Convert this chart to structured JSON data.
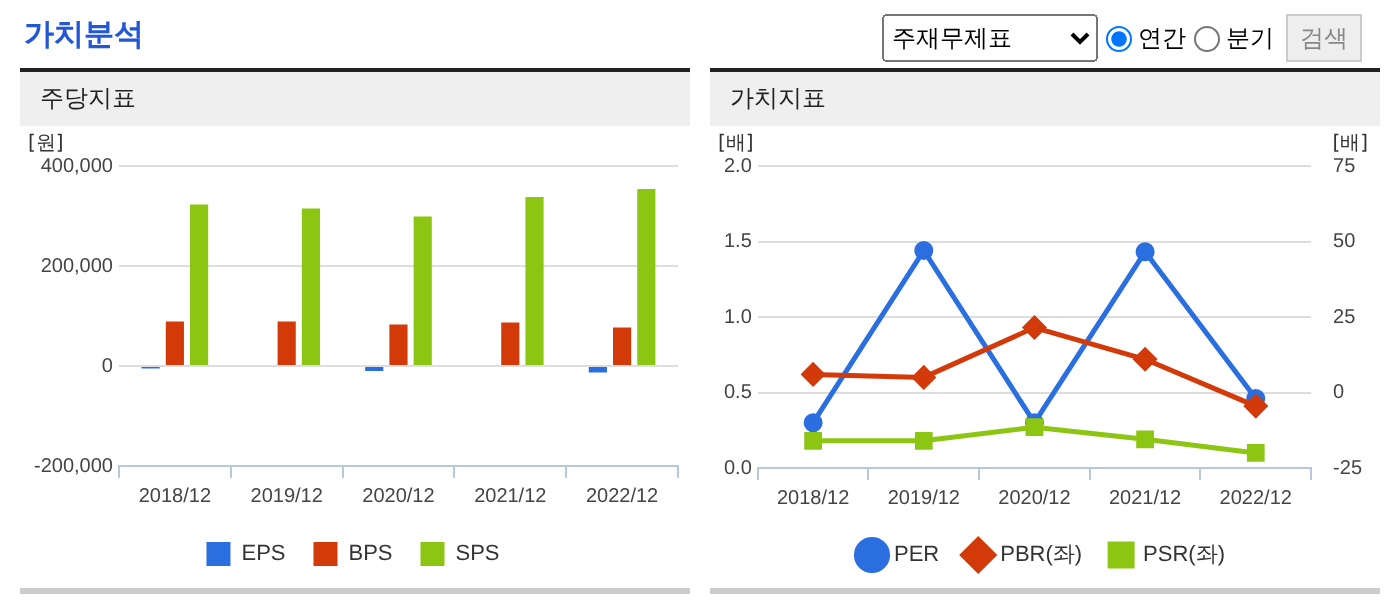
{
  "chart_data": [
    {
      "type": "other",
      "title": "가치분석",
      "annotations": [
        "주재무제표",
        "연간",
        "분기",
        "검색"
      ]
    },
    {
      "type": "bar",
      "title": "주당지표",
      "ylabel": "[원]",
      "categories": [
        "2018/12",
        "2019/12",
        "2020/12",
        "2021/12",
        "2022/12"
      ],
      "series": [
        {
          "name": "EPS",
          "color": "#2a6ee0",
          "values": [
            -5000,
            0,
            -10000,
            0,
            -13000
          ]
        },
        {
          "name": "BPS",
          "color": "#d23a0a",
          "values": [
            89000,
            89000,
            83000,
            87000,
            77000
          ]
        },
        {
          "name": "SPS",
          "color": "#8cc512",
          "values": [
            323000,
            315000,
            299000,
            338000,
            354000
          ]
        }
      ],
      "ylim": [
        -200000,
        400000
      ],
      "yticks": [
        {
          "value": -200000,
          "label": "-200,000"
        },
        0,
        {
          "value": 200000,
          "label": "200,000"
        },
        {
          "value": 400000,
          "label": "400,000"
        }
      ],
      "grid": "y",
      "legend": "bottom"
    },
    {
      "type": "line",
      "title": "가치지표",
      "ylabel": "[배]",
      "y2label": "[배]",
      "categories": [
        "2018/12",
        "2019/12",
        "2020/12",
        "2021/12",
        "2022/12"
      ],
      "series": [
        {
          "name": "PER",
          "color": "#2a6ee0",
          "axis": "y2",
          "marker": "circle",
          "values": [
            -10,
            47,
            -10,
            46.6,
            -2
          ]
        },
        {
          "name": "PBR(좌)",
          "color": "#d23a0a",
          "marker": "diamond",
          "values": [
            0.62,
            0.6,
            0.93,
            0.72,
            0.41
          ]
        },
        {
          "name": "PSR(좌)",
          "color": "#8cc512",
          "marker": "square",
          "values": [
            0.18,
            0.18,
            0.27,
            0.19,
            0.1
          ]
        }
      ],
      "ylim": [
        0,
        2
      ],
      "yticks": [
        {
          "value": 0,
          "label": "0.0"
        },
        {
          "value": 0.5,
          "label": "0.5"
        },
        {
          "value": 1,
          "label": "1.0"
        },
        {
          "value": 1.5,
          "label": "1.5"
        },
        {
          "value": 2,
          "label": "2.0"
        }
      ],
      "y2lim": [
        -25,
        75
      ],
      "y2ticks": [
        -25,
        0,
        25,
        50,
        75
      ],
      "grid": "y",
      "legend": "bottom"
    }
  ]
}
